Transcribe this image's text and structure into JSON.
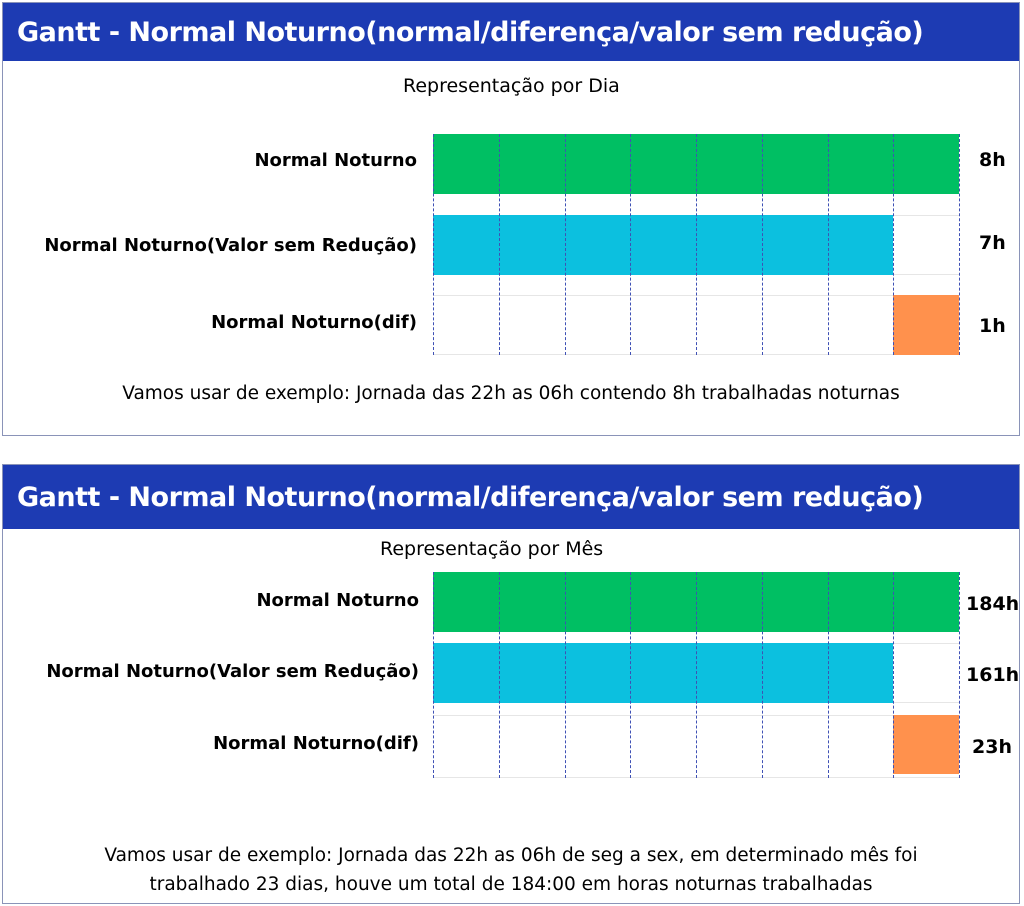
{
  "colors": {
    "header": "#1d3bb3",
    "normal": "#00bf63",
    "sem_reducao": "#0cc0df",
    "dif": "#ff914d"
  },
  "day": {
    "title": "Gantt - Normal Noturno(normal/diferença/valor sem redução)",
    "subtitle": "Representação por Dia",
    "rows": [
      {
        "label": "Normal Noturno",
        "value_label": "8h",
        "hours": 8,
        "color": "normal"
      },
      {
        "label": "Normal Noturno(Valor sem Redução)",
        "value_label": "7h",
        "hours": 7,
        "color": "sem_reducao"
      },
      {
        "label": "Normal Noturno(dif)",
        "value_label": "1h",
        "hours": 1,
        "color": "dif"
      }
    ],
    "footnote": "Vamos usar de exemplo: Jornada das 22h as 06h  contendo 8h trabalhadas noturnas"
  },
  "month": {
    "title": "Gantt - Normal Noturno(normal/diferença/valor sem redução)",
    "subtitle": "Representação por Mês",
    "rows": [
      {
        "label": "Normal Noturno",
        "value_label": "184h",
        "hours": 184,
        "color": "normal"
      },
      {
        "label": "Normal Noturno(Valor sem Redução)",
        "value_label": "161h",
        "hours": 161,
        "color": "sem_reducao"
      },
      {
        "label": "Normal Noturno(dif)",
        "value_label": "23h",
        "hours": 23,
        "color": "dif"
      }
    ],
    "footnote_line1": "Vamos usar de exemplo: Jornada das 22h as 06h de seg a sex, em determinado mês foi",
    "footnote_line2": "trabalhado 23 dias, houve um total de 184:00 em horas noturnas trabalhadas"
  }
}
